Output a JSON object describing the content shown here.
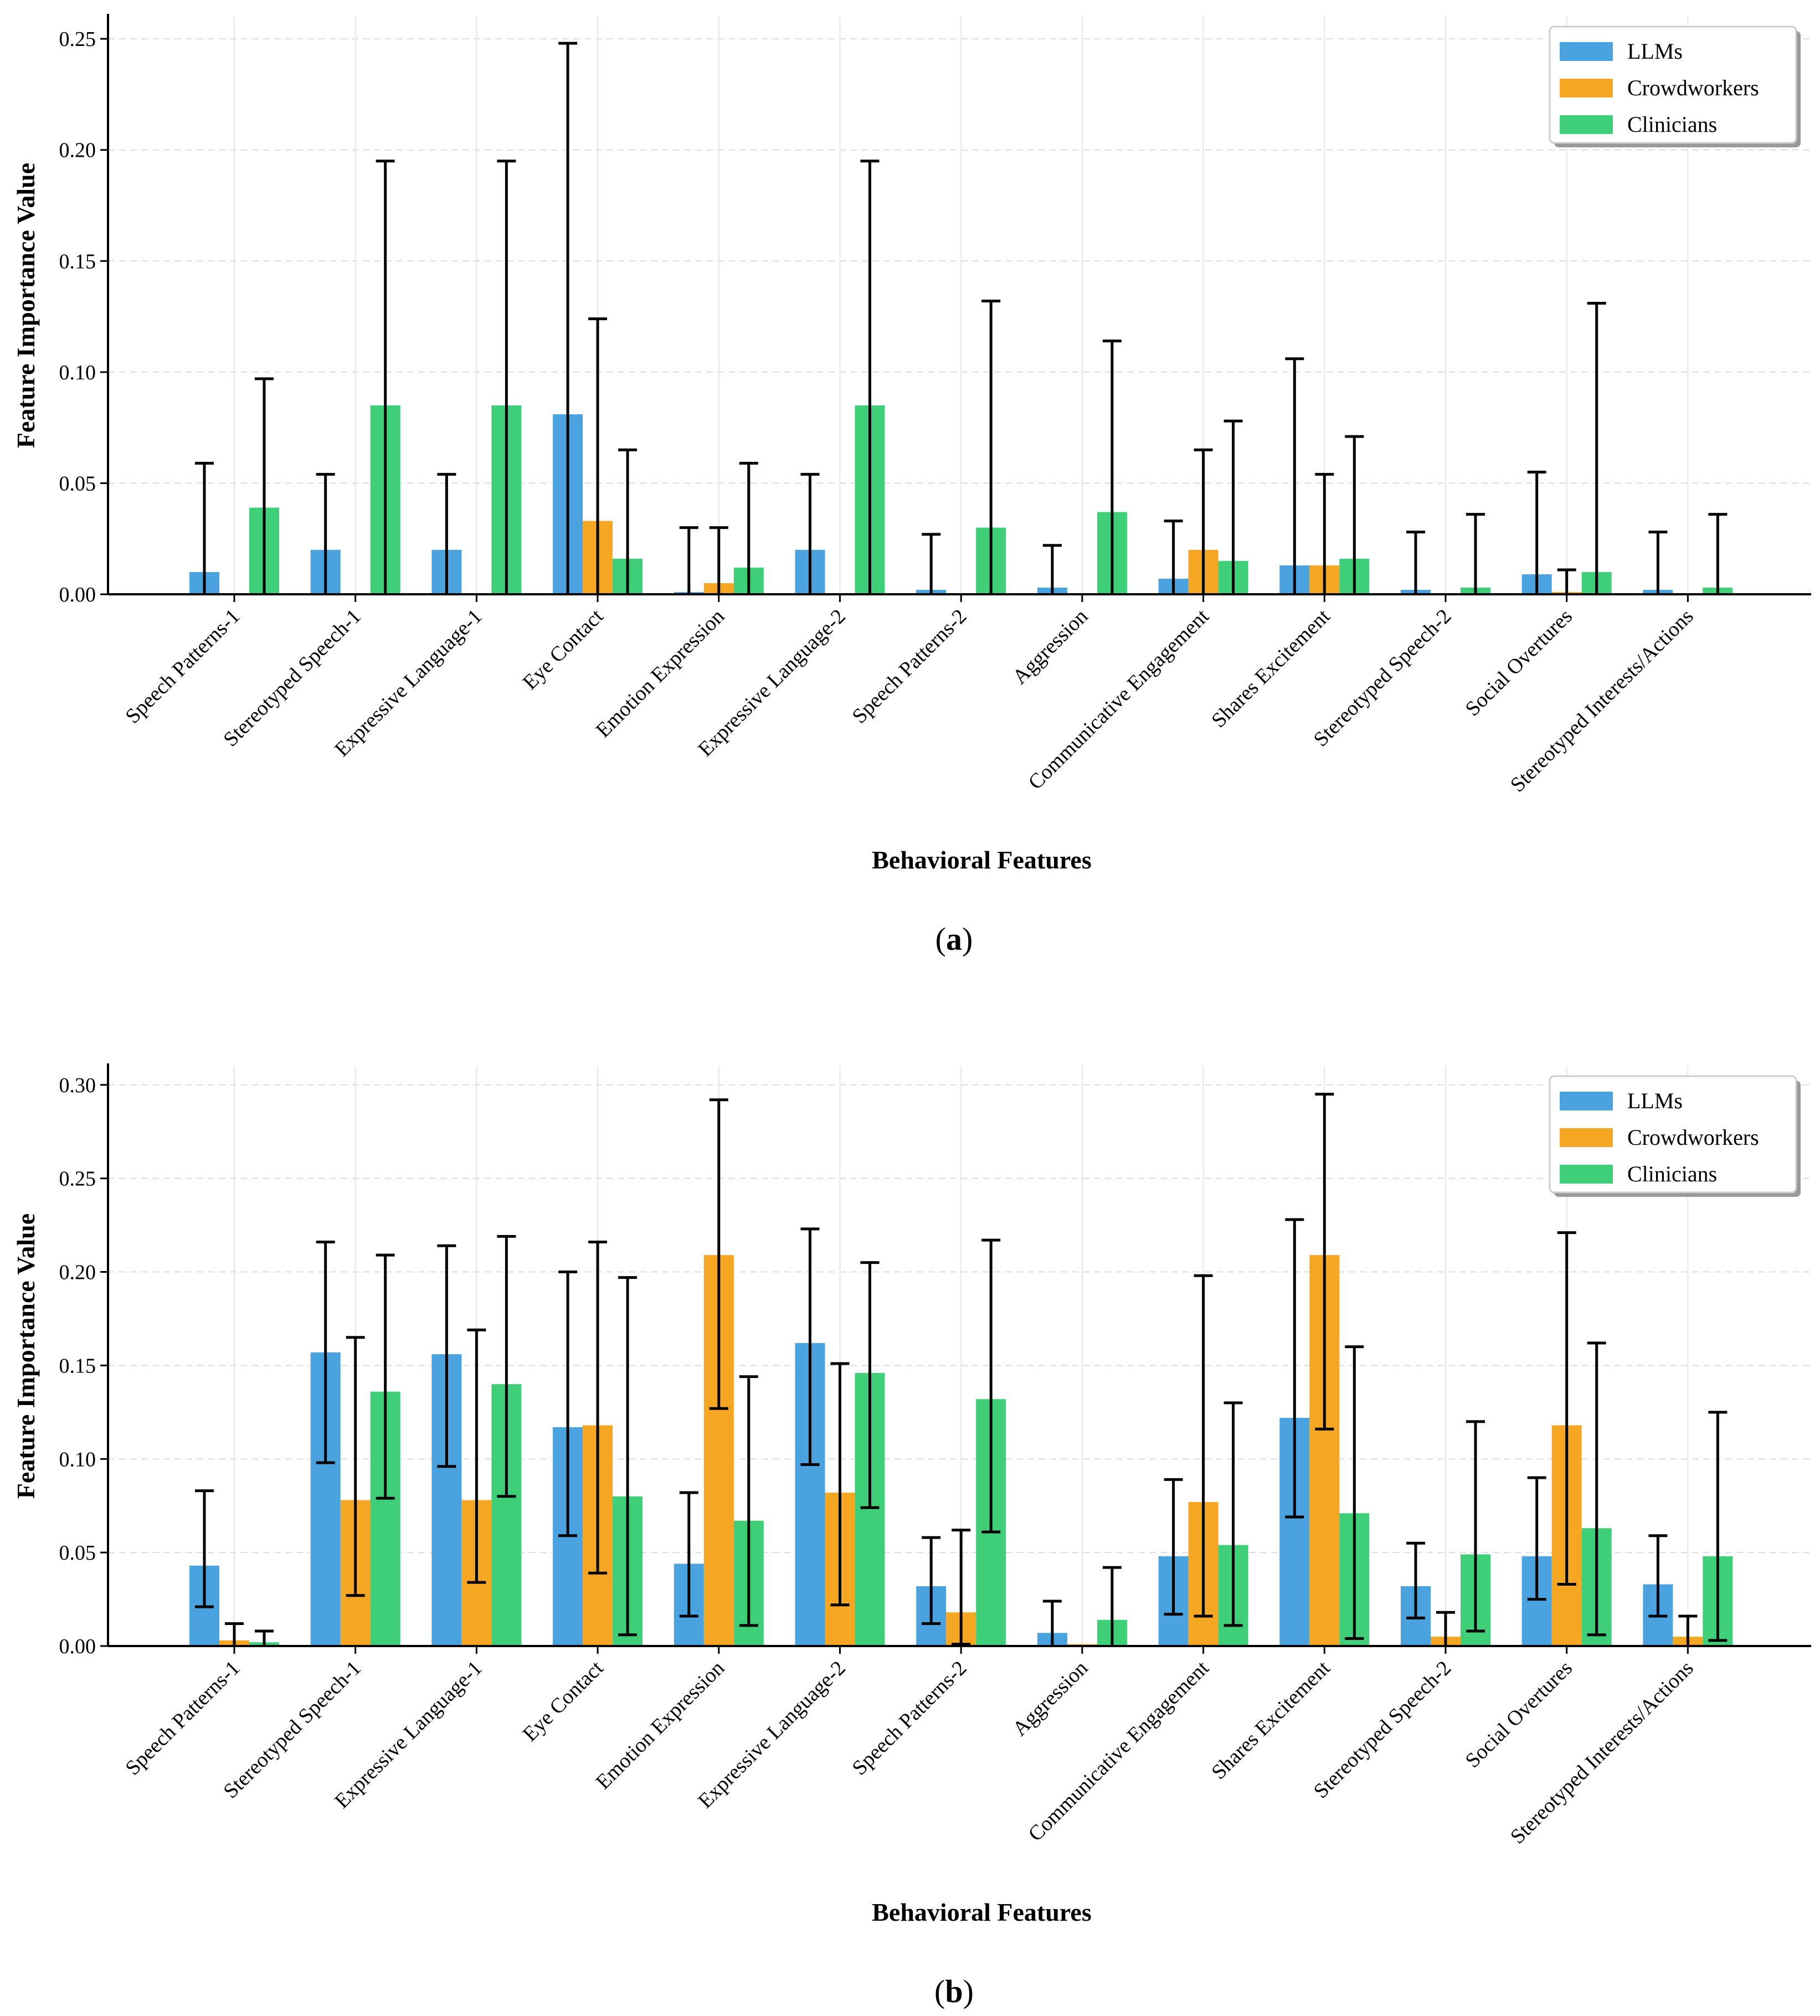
{
  "colors": {
    "LLMs": "#4aa3df",
    "Crowdworkers": "#f5a623",
    "Clinicians": "#3fcf78"
  },
  "chart_data": [
    {
      "type": "bar",
      "caption_label": "a",
      "xlabel": "Behavioral Features",
      "ylabel": "Feature Importance Value",
      "ylim": [
        0,
        0.26
      ],
      "yticks": [
        "0.00",
        "0.05",
        "0.10",
        "0.15",
        "0.20",
        "0.25"
      ],
      "ytick_values": [
        0,
        0.05,
        0.1,
        0.15,
        0.2,
        0.25
      ],
      "grid": true,
      "legend_position": "top-right",
      "categories": [
        "Speech Patterns-1",
        "Stereotyped Speech-1",
        "Expressive Language-1",
        "Eye Contact",
        "Emotion Expression",
        "Expressive Language-2",
        "Speech Patterns-2",
        "Aggression",
        "Communicative Engagement",
        "Shares Excitement",
        "Stereotyped Speech-2",
        "Social Overtures",
        "Stereotyped Interests/Actions"
      ],
      "series": [
        {
          "name": "LLMs",
          "values": [
            0.01,
            0.02,
            0.02,
            0.081,
            0.001,
            0.02,
            0.002,
            0.003,
            0.007,
            0.013,
            0.002,
            0.009,
            0.002
          ],
          "err_high": [
            0.059,
            0.054,
            0.054,
            0.248,
            0.03,
            0.054,
            0.027,
            0.022,
            0.033,
            0.106,
            0.028,
            0.055,
            0.028
          ]
        },
        {
          "name": "Crowdworkers",
          "values": [
            0,
            0,
            0,
            0.033,
            0.005,
            0,
            0,
            0,
            0.02,
            0.013,
            0,
            0.001,
            0
          ],
          "err_high": [
            null,
            null,
            null,
            0.124,
            0.03,
            null,
            null,
            null,
            0.065,
            0.054,
            null,
            0.011,
            null
          ]
        },
        {
          "name": "Clinicians",
          "values": [
            0.039,
            0.085,
            0.085,
            0.016,
            0.012,
            0.085,
            0.03,
            0.037,
            0.015,
            0.016,
            0.003,
            0.01,
            0.003
          ],
          "err_high": [
            0.097,
            0.195,
            0.195,
            0.065,
            0.059,
            0.195,
            0.132,
            0.114,
            0.078,
            0.071,
            0.036,
            0.131,
            0.036
          ]
        }
      ]
    },
    {
      "type": "bar",
      "caption_label": "b",
      "xlabel": "Behavioral Features",
      "ylabel": "Feature Importance Value",
      "ylim": [
        0,
        0.31
      ],
      "yticks": [
        "0.00",
        "0.05",
        "0.10",
        "0.15",
        "0.20",
        "0.25",
        "0.30"
      ],
      "ytick_values": [
        0,
        0.05,
        0.1,
        0.15,
        0.2,
        0.25,
        0.3
      ],
      "grid": true,
      "legend_position": "top-right",
      "categories": [
        "Speech Patterns-1",
        "Stereotyped Speech-1",
        "Expressive Language-1",
        "Eye Contact",
        "Emotion Expression",
        "Expressive Language-2",
        "Speech Patterns-2",
        "Aggression",
        "Communicative Engagement",
        "Shares Excitement",
        "Stereotyped Speech-2",
        "Social Overtures",
        "Stereotyped Interests/Actions"
      ],
      "series": [
        {
          "name": "LLMs",
          "values": [
            0.043,
            0.157,
            0.156,
            0.117,
            0.044,
            0.162,
            0.032,
            0.007,
            0.048,
            0.122,
            0.032,
            0.048,
            0.033
          ],
          "err_low": [
            0.021,
            0.098,
            0.096,
            0.059,
            0.016,
            0.097,
            0.012,
            null,
            0.017,
            0.069,
            0.015,
            0.025,
            0.016
          ],
          "err_high": [
            0.083,
            0.216,
            0.214,
            0.2,
            0.082,
            0.223,
            0.058,
            0.024,
            0.089,
            0.228,
            0.055,
            0.09,
            0.059
          ]
        },
        {
          "name": "Crowdworkers",
          "values": [
            0.003,
            0.078,
            0.078,
            0.118,
            0.209,
            0.082,
            0.018,
            0.001,
            0.077,
            0.209,
            0.005,
            0.118,
            0.005
          ],
          "err_low": [
            null,
            0.027,
            0.034,
            0.039,
            0.127,
            0.022,
            0.001,
            null,
            0.016,
            0.116,
            null,
            0.033,
            null
          ],
          "err_high": [
            0.012,
            0.165,
            0.169,
            0.216,
            0.292,
            0.151,
            0.062,
            null,
            0.198,
            0.295,
            0.018,
            0.221,
            0.016
          ]
        },
        {
          "name": "Clinicians",
          "values": [
            0.002,
            0.136,
            0.14,
            0.08,
            0.067,
            0.146,
            0.132,
            0.014,
            0.054,
            0.071,
            0.049,
            0.063,
            0.048
          ],
          "err_low": [
            null,
            0.079,
            0.08,
            0.006,
            0.011,
            0.074,
            0.061,
            null,
            0.011,
            0.004,
            0.008,
            0.006,
            0.003
          ],
          "err_high": [
            0.008,
            0.209,
            0.219,
            0.197,
            0.144,
            0.205,
            0.217,
            0.042,
            0.13,
            0.16,
            0.12,
            0.162,
            0.125
          ]
        }
      ]
    }
  ]
}
